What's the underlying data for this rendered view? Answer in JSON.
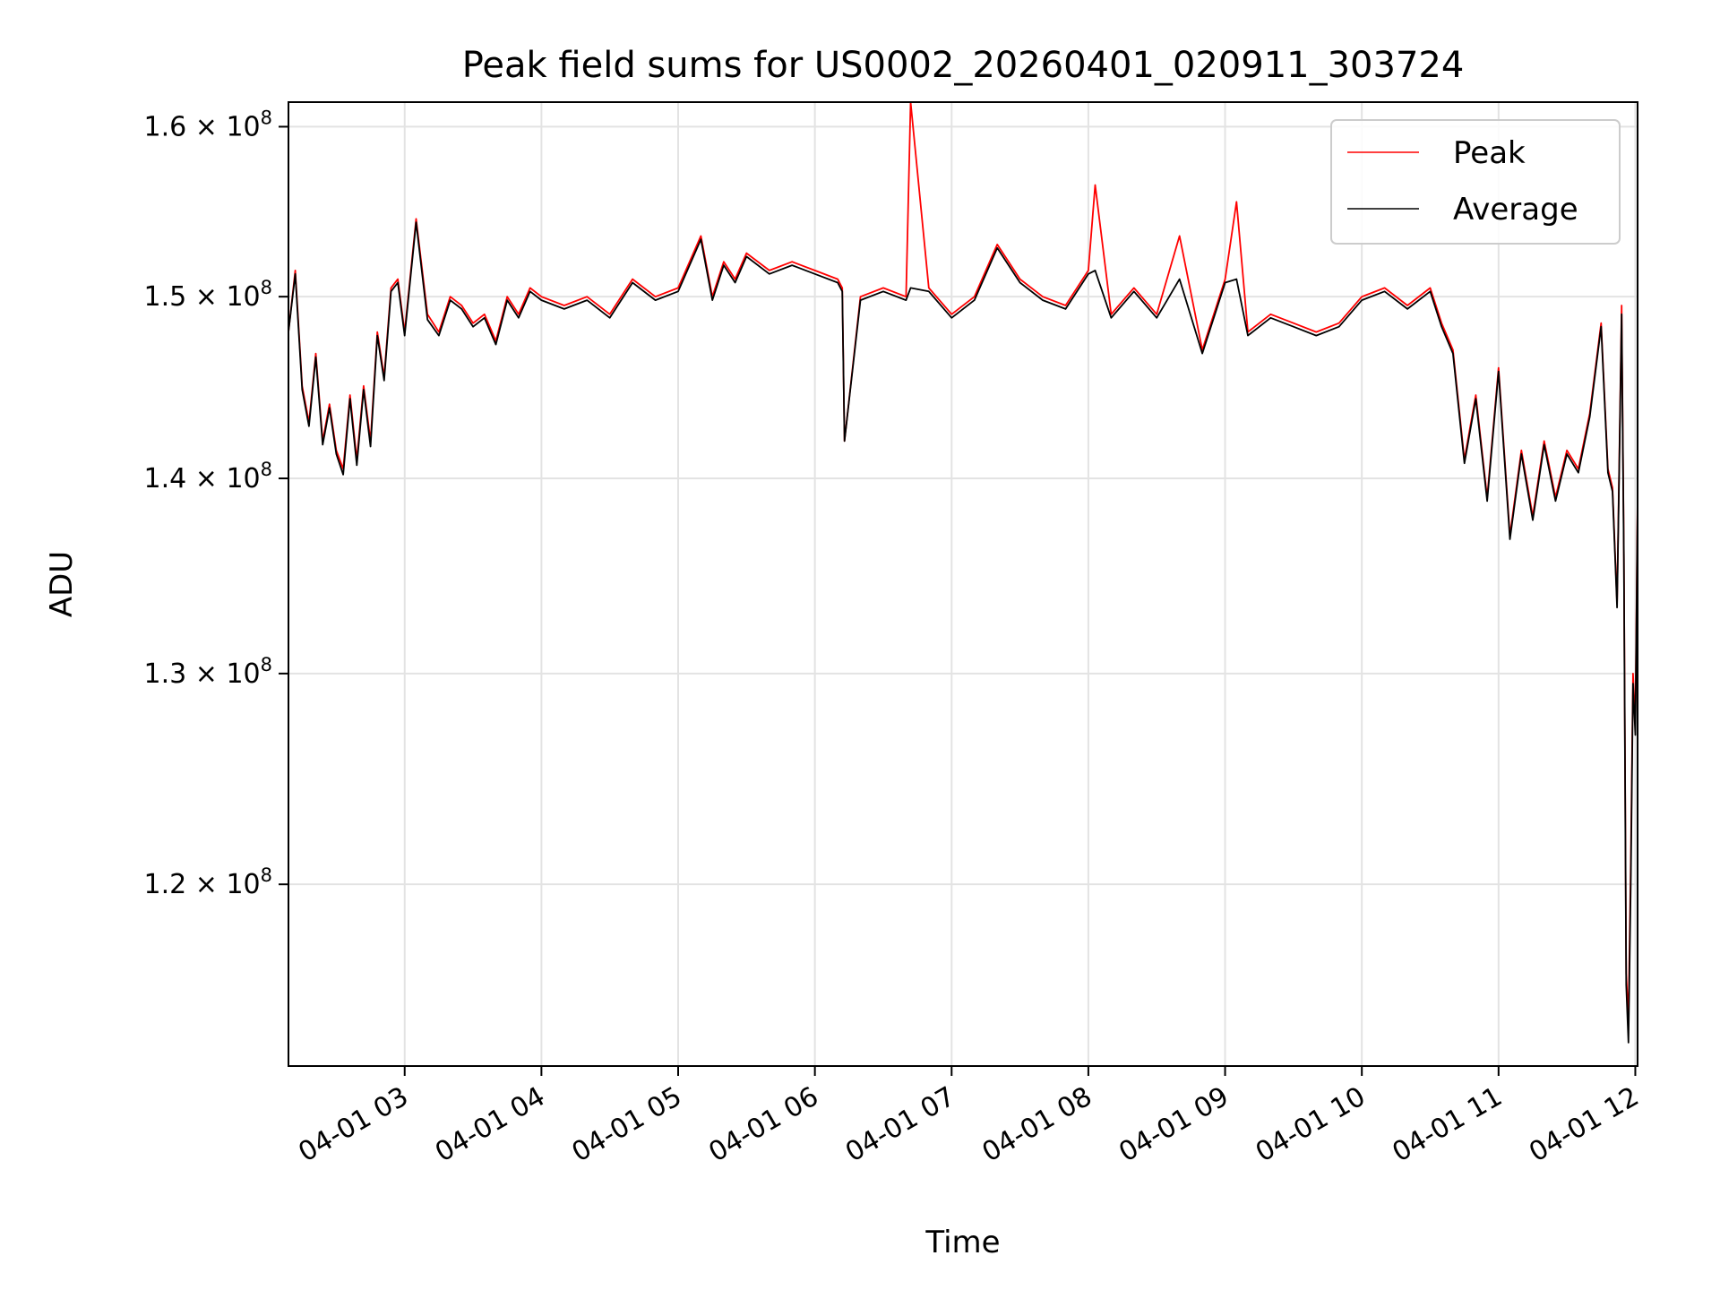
{
  "chart_data": {
    "type": "line",
    "title": "Peak field sums for US0002_20260401_020911_303724",
    "xlabel": "Time",
    "ylabel": "ADU",
    "y_scale": "log",
    "ylim": [
      112000000,
      161500000
    ],
    "xlim": [
      "2026-04-01 02:09",
      "2026-04-01 12:01"
    ],
    "grid": true,
    "legend": {
      "placement": "top-right",
      "entries": [
        "Peak",
        "Average"
      ]
    },
    "x_ticks": [
      "04-01 03",
      "04-01 04",
      "04-01 05",
      "04-01 06",
      "04-01 07",
      "04-01 08",
      "04-01 09",
      "04-01 10",
      "04-01 11",
      "04-01 12"
    ],
    "y_ticks": [
      {
        "value": 120000000,
        "mantissa": "1.2",
        "exp": "8"
      },
      {
        "value": 130000000,
        "mantissa": "1.3",
        "exp": "8"
      },
      {
        "value": 140000000,
        "mantissa": "1.4",
        "exp": "8"
      },
      {
        "value": 150000000,
        "mantissa": "1.5",
        "exp": "8"
      },
      {
        "value": 160000000,
        "mantissa": "1.6",
        "exp": "8"
      }
    ],
    "x": [
      "2026-04-01 02:09",
      "2026-04-01 02:12",
      "2026-04-01 02:15",
      "2026-04-01 02:18",
      "2026-04-01 02:21",
      "2026-04-01 02:24",
      "2026-04-01 02:27",
      "2026-04-01 02:30",
      "2026-04-01 02:33",
      "2026-04-01 02:36",
      "2026-04-01 02:39",
      "2026-04-01 02:42",
      "2026-04-01 02:45",
      "2026-04-01 02:48",
      "2026-04-01 02:51",
      "2026-04-01 02:54",
      "2026-04-01 02:57",
      "2026-04-01 03:00",
      "2026-04-01 03:05",
      "2026-04-01 03:10",
      "2026-04-01 03:15",
      "2026-04-01 03:20",
      "2026-04-01 03:25",
      "2026-04-01 03:30",
      "2026-04-01 03:35",
      "2026-04-01 03:40",
      "2026-04-01 03:45",
      "2026-04-01 03:50",
      "2026-04-01 03:55",
      "2026-04-01 04:00",
      "2026-04-01 04:10",
      "2026-04-01 04:20",
      "2026-04-01 04:30",
      "2026-04-01 04:40",
      "2026-04-01 04:50",
      "2026-04-01 05:00",
      "2026-04-01 05:10",
      "2026-04-01 05:15",
      "2026-04-01 05:20",
      "2026-04-01 05:25",
      "2026-04-01 05:30",
      "2026-04-01 05:40",
      "2026-04-01 05:50",
      "2026-04-01 06:00",
      "2026-04-01 06:10",
      "2026-04-01 06:12",
      "2026-04-01 06:13",
      "2026-04-01 06:20",
      "2026-04-01 06:30",
      "2026-04-01 06:40",
      "2026-04-01 06:42",
      "2026-04-01 06:50",
      "2026-04-01 07:00",
      "2026-04-01 07:10",
      "2026-04-01 07:20",
      "2026-04-01 07:30",
      "2026-04-01 07:40",
      "2026-04-01 07:50",
      "2026-04-01 08:00",
      "2026-04-01 08:03",
      "2026-04-01 08:10",
      "2026-04-01 08:20",
      "2026-04-01 08:30",
      "2026-04-01 08:40",
      "2026-04-01 08:50",
      "2026-04-01 09:00",
      "2026-04-01 09:05",
      "2026-04-01 09:10",
      "2026-04-01 09:20",
      "2026-04-01 09:30",
      "2026-04-01 09:40",
      "2026-04-01 09:50",
      "2026-04-01 10:00",
      "2026-04-01 10:10",
      "2026-04-01 10:20",
      "2026-04-01 10:30",
      "2026-04-01 10:35",
      "2026-04-01 10:40",
      "2026-04-01 10:45",
      "2026-04-01 10:50",
      "2026-04-01 10:55",
      "2026-04-01 11:00",
      "2026-04-01 11:05",
      "2026-04-01 11:10",
      "2026-04-01 11:15",
      "2026-04-01 11:20",
      "2026-04-01 11:25",
      "2026-04-01 11:30",
      "2026-04-01 11:35",
      "2026-04-01 11:40",
      "2026-04-01 11:45",
      "2026-04-01 11:48",
      "2026-04-01 11:50",
      "2026-04-01 11:52",
      "2026-04-01 11:54",
      "2026-04-01 11:55",
      "2026-04-01 11:56",
      "2026-04-01 11:57",
      "2026-04-01 11:58",
      "2026-04-01 11:59",
      "2026-04-01 12:00",
      "2026-04-01 12:01"
    ],
    "series": [
      {
        "name": "Peak",
        "color": "#ff0000",
        "values": [
          148000000,
          151500000,
          145000000,
          143000000,
          146800000,
          142000000,
          144000000,
          141500000,
          140500000,
          144500000,
          141000000,
          145000000,
          142000000,
          148000000,
          145500000,
          150500000,
          151000000,
          148000000,
          154500000,
          149000000,
          148000000,
          150000000,
          149500000,
          148500000,
          149000000,
          147500000,
          150000000,
          149000000,
          150500000,
          150000000,
          149500000,
          150000000,
          149000000,
          151000000,
          150000000,
          150500000,
          153500000,
          150000000,
          152000000,
          151000000,
          152500000,
          151500000,
          152000000,
          151500000,
          151000000,
          150500000,
          142000000,
          150000000,
          150500000,
          150000000,
          161500000,
          150500000,
          149000000,
          150000000,
          153000000,
          151000000,
          150000000,
          149500000,
          151500000,
          156500000,
          149000000,
          150500000,
          149000000,
          153500000,
          147000000,
          151000000,
          155500000,
          148000000,
          149000000,
          148500000,
          148000000,
          148500000,
          150000000,
          150500000,
          149500000,
          150500000,
          148500000,
          147000000,
          141000000,
          144500000,
          139000000,
          146000000,
          137000000,
          141500000,
          138000000,
          142000000,
          139000000,
          141500000,
          140500000,
          143500000,
          148500000,
          140500000,
          139500000,
          133500000,
          149500000,
          136000000,
          116000000,
          114000000,
          121000000,
          130000000,
          127500000,
          139000000
        ]
      },
      {
        "name": "Average",
        "color": "#000000",
        "values": [
          148000000,
          151300000,
          144800000,
          142800000,
          146600000,
          141800000,
          143800000,
          141300000,
          140200000,
          144300000,
          140700000,
          144800000,
          141700000,
          147800000,
          145300000,
          150300000,
          150800000,
          147800000,
          154300000,
          148700000,
          147800000,
          149800000,
          149300000,
          148300000,
          148800000,
          147300000,
          149800000,
          148800000,
          150300000,
          149800000,
          149300000,
          149800000,
          148800000,
          150800000,
          149800000,
          150300000,
          153300000,
          149800000,
          151800000,
          150800000,
          152300000,
          151300000,
          151800000,
          151300000,
          150800000,
          150300000,
          142000000,
          149800000,
          150300000,
          149800000,
          150500000,
          150300000,
          148800000,
          149800000,
          152800000,
          150800000,
          149800000,
          149300000,
          151300000,
          151500000,
          148800000,
          150300000,
          148800000,
          151000000,
          146800000,
          150800000,
          151000000,
          147800000,
          148800000,
          148300000,
          147800000,
          148300000,
          149800000,
          150300000,
          149300000,
          150300000,
          148300000,
          146800000,
          140800000,
          144300000,
          138800000,
          145800000,
          136800000,
          141300000,
          137800000,
          141800000,
          138800000,
          141300000,
          140300000,
          143300000,
          148300000,
          140300000,
          139300000,
          133300000,
          149000000,
          135800000,
          115500000,
          113000000,
          120000000,
          129500000,
          127000000,
          138500000
        ]
      }
    ]
  }
}
